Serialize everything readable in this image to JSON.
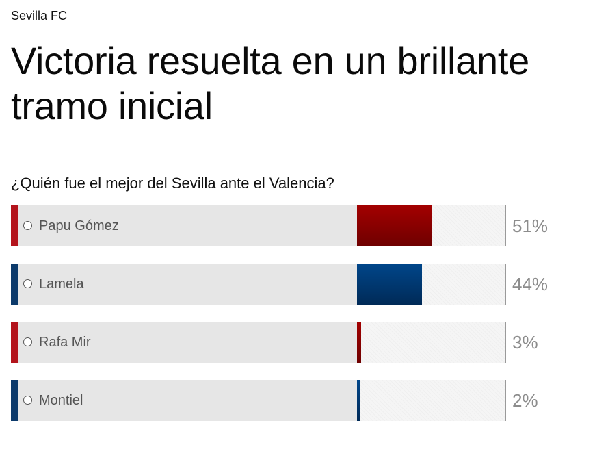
{
  "section": "Sevilla FC",
  "headline": "Victoria resuelta en un brillante tramo inicial",
  "poll": {
    "question": "¿Quién fue el mejor del Sevilla ante el Valencia?",
    "options": [
      {
        "name": "Papu Gómez",
        "percent_label": "51%",
        "value": 51,
        "accent": "#b3141c",
        "fill_top": "#a30000",
        "fill_bottom": "#6e0000"
      },
      {
        "name": "Lamela",
        "percent_label": "44%",
        "value": 44,
        "accent": "#0c3a6b",
        "fill_top": "#00468a",
        "fill_bottom": "#002a57"
      },
      {
        "name": "Rafa Mir",
        "percent_label": "3%",
        "value": 3,
        "accent": "#b3141c",
        "fill_top": "#a30000",
        "fill_bottom": "#6e0000"
      },
      {
        "name": "Montiel",
        "percent_label": "2%",
        "value": 2,
        "accent": "#0c3a6b",
        "fill_top": "#00468a",
        "fill_bottom": "#002a57"
      }
    ]
  }
}
